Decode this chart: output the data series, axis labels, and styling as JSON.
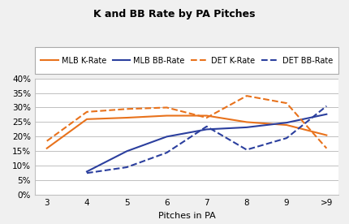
{
  "title": "K and BB Rate by PA Pitches",
  "xlabel": "Pitches in PA",
  "x_labels": [
    "3",
    "4",
    "5",
    "6",
    "7",
    "8",
    "9",
    ">9"
  ],
  "x_values": [
    0,
    1,
    2,
    3,
    4,
    5,
    6,
    7
  ],
  "mlb_k_rate": [
    0.16,
    0.26,
    0.265,
    0.272,
    0.272,
    0.25,
    0.24,
    0.205
  ],
  "mlb_bb_rate": [
    null,
    0.08,
    0.15,
    0.2,
    0.225,
    0.232,
    0.248,
    0.277
  ],
  "det_k_rate": [
    0.185,
    0.285,
    0.295,
    0.3,
    0.265,
    0.34,
    0.315,
    0.16
  ],
  "det_bb_rate": [
    null,
    0.075,
    0.095,
    0.145,
    0.235,
    0.155,
    0.195,
    0.305
  ],
  "mlb_k_color": "#E8721C",
  "mlb_bb_color": "#2B3F9E",
  "det_k_color": "#E8721C",
  "det_bb_color": "#2B3F9E",
  "ylim": [
    0,
    0.4
  ],
  "yticks": [
    0,
    0.05,
    0.1,
    0.15,
    0.2,
    0.25,
    0.3,
    0.35,
    0.4
  ],
  "legend_labels": [
    "MLB K-Rate",
    "MLB BB-Rate",
    "DET K-Rate",
    "DET BB-Rate"
  ],
  "bg_color": "#ffffff",
  "fig_bg_color": "#f0f0f0"
}
